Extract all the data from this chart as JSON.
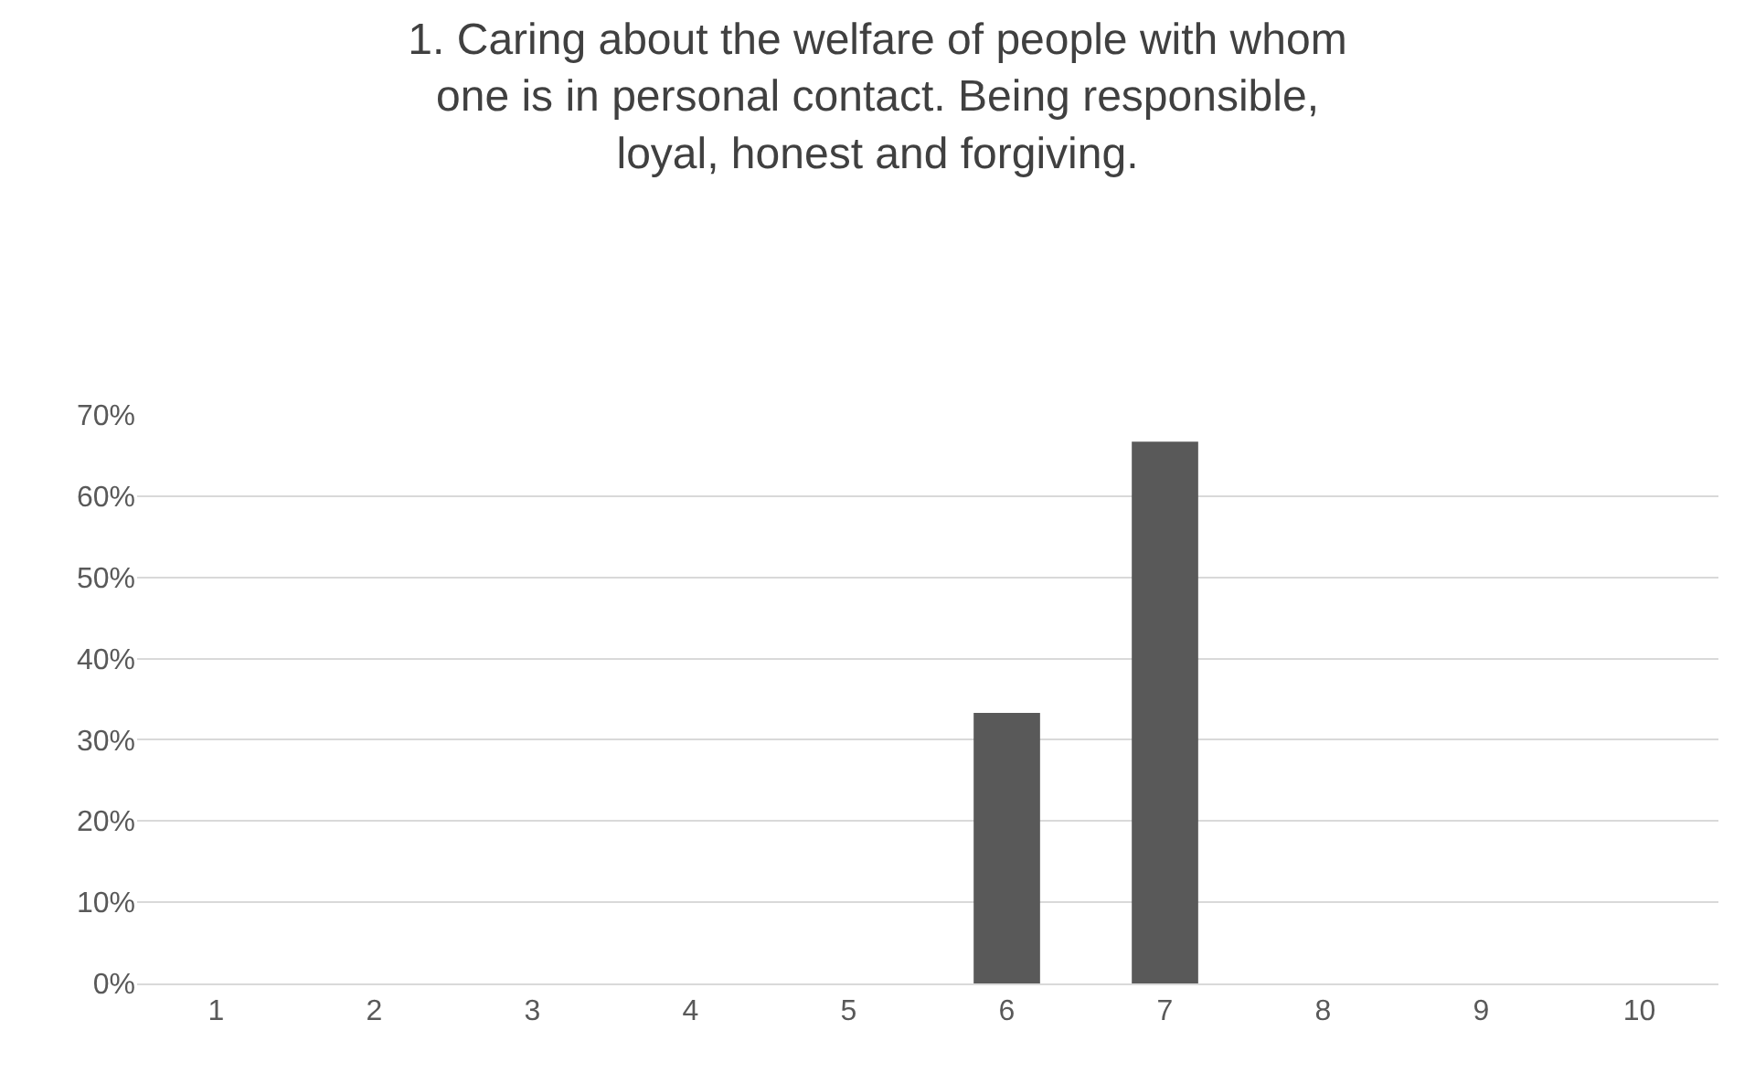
{
  "chart_data": {
    "type": "bar",
    "title": "1. Caring about the welfare of people with whom one is in personal contact. Being responsible, loyal, honest and forgiving.",
    "categories": [
      "1",
      "2",
      "3",
      "4",
      "5",
      "6",
      "7",
      "8",
      "9",
      "10"
    ],
    "values": [
      0,
      0,
      0,
      0,
      0,
      33.3,
      66.7,
      0,
      0,
      0
    ],
    "color": "#595959",
    "ylim": [
      0,
      70
    ],
    "yticks": [
      {
        "value": 0,
        "label": "0%"
      },
      {
        "value": 10,
        "label": "10%"
      },
      {
        "value": 20,
        "label": "20%"
      },
      {
        "value": 30,
        "label": "30%"
      },
      {
        "value": 40,
        "label": "40%"
      },
      {
        "value": 50,
        "label": "50%"
      },
      {
        "value": 60,
        "label": "60%"
      },
      {
        "value": 70,
        "label": "70%"
      }
    ],
    "grid": "y",
    "legend": false
  }
}
